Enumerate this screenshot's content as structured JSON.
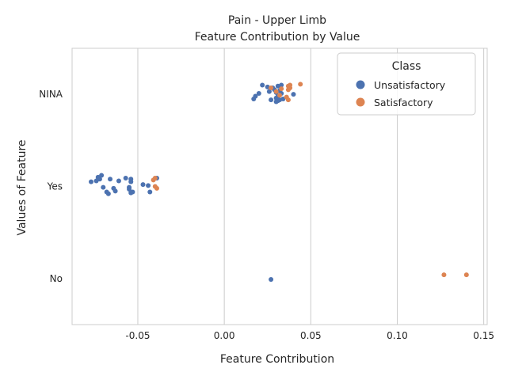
{
  "chart_data": {
    "type": "scatter",
    "title": "Pain - Upper Limb",
    "subtitle": "Feature Contribution by Value",
    "xlabel": "Feature Contribution",
    "ylabel": "Values of Feature",
    "xlim": [
      -0.088,
      0.152
    ],
    "x_ticks": [
      "-0.05",
      "0.00",
      "0.05",
      "0.10",
      "0.15"
    ],
    "x_tick_values": [
      -0.05,
      0.0,
      0.05,
      0.1,
      0.15
    ],
    "categories": [
      "NINA",
      "Yes",
      "No"
    ],
    "grid": "vertical",
    "legend": {
      "title": "Class",
      "position": "top-right"
    },
    "series": [
      {
        "name": "Unsatisfactory",
        "color": "#4c72b0",
        "points": [
          {
            "category": "NINA",
            "x": 0.022,
            "jitter": 0.1
          },
          {
            "category": "NINA",
            "x": 0.025,
            "jitter": 0.08
          },
          {
            "category": "NINA",
            "x": 0.026,
            "jitter": 0.03
          },
          {
            "category": "NINA",
            "x": 0.028,
            "jitter": 0.07
          },
          {
            "category": "NINA",
            "x": 0.029,
            "jitter": 0.05
          },
          {
            "category": "NINA",
            "x": 0.03,
            "jitter": 0.02
          },
          {
            "category": "NINA",
            "x": 0.031,
            "jitter": 0.09
          },
          {
            "category": "NINA",
            "x": 0.032,
            "jitter": 0.04
          },
          {
            "category": "NINA",
            "x": 0.033,
            "jitter": 0.1
          },
          {
            "category": "NINA",
            "x": 0.033,
            "jitter": 0.01
          },
          {
            "category": "NINA",
            "x": 0.031,
            "jitter": -0.02
          },
          {
            "category": "NINA",
            "x": 0.03,
            "jitter": -0.04
          },
          {
            "category": "NINA",
            "x": 0.032,
            "jitter": -0.06
          },
          {
            "category": "NINA",
            "x": 0.034,
            "jitter": -0.05
          },
          {
            "category": "NINA",
            "x": 0.031,
            "jitter": -0.07
          },
          {
            "category": "NINA",
            "x": 0.03,
            "jitter": -0.08
          },
          {
            "category": "NINA",
            "x": 0.027,
            "jitter": -0.06
          },
          {
            "category": "NINA",
            "x": 0.02,
            "jitter": 0.01
          },
          {
            "category": "NINA",
            "x": 0.018,
            "jitter": -0.02
          },
          {
            "category": "NINA",
            "x": 0.017,
            "jitter": -0.05
          },
          {
            "category": "NINA",
            "x": 0.04,
            "jitter": 0.0
          },
          {
            "category": "Yes",
            "x": -0.077,
            "jitter": 0.05
          },
          {
            "category": "Yes",
            "x": -0.074,
            "jitter": 0.06
          },
          {
            "category": "Yes",
            "x": -0.073,
            "jitter": 0.1
          },
          {
            "category": "Yes",
            "x": -0.072,
            "jitter": 0.08
          },
          {
            "category": "Yes",
            "x": -0.071,
            "jitter": 0.12
          },
          {
            "category": "Yes",
            "x": -0.066,
            "jitter": 0.08
          },
          {
            "category": "Yes",
            "x": -0.061,
            "jitter": 0.06
          },
          {
            "category": "Yes",
            "x": -0.057,
            "jitter": 0.09
          },
          {
            "category": "Yes",
            "x": -0.054,
            "jitter": 0.08
          },
          {
            "category": "Yes",
            "x": -0.054,
            "jitter": 0.05
          },
          {
            "category": "Yes",
            "x": -0.07,
            "jitter": -0.01
          },
          {
            "category": "Yes",
            "x": -0.068,
            "jitter": -0.06
          },
          {
            "category": "Yes",
            "x": -0.067,
            "jitter": -0.08
          },
          {
            "category": "Yes",
            "x": -0.064,
            "jitter": -0.02
          },
          {
            "category": "Yes",
            "x": -0.063,
            "jitter": -0.05
          },
          {
            "category": "Yes",
            "x": -0.055,
            "jitter": -0.01
          },
          {
            "category": "Yes",
            "x": -0.055,
            "jitter": -0.03
          },
          {
            "category": "Yes",
            "x": -0.054,
            "jitter": -0.07
          },
          {
            "category": "Yes",
            "x": -0.053,
            "jitter": -0.06
          },
          {
            "category": "Yes",
            "x": -0.047,
            "jitter": 0.02
          },
          {
            "category": "Yes",
            "x": -0.044,
            "jitter": 0.01
          },
          {
            "category": "Yes",
            "x": -0.043,
            "jitter": -0.06
          },
          {
            "category": "Yes",
            "x": -0.039,
            "jitter": 0.09
          },
          {
            "category": "No",
            "x": 0.027,
            "jitter": -0.01
          }
        ]
      },
      {
        "name": "Satisfactory",
        "color": "#dd8452",
        "points": [
          {
            "category": "NINA",
            "x": 0.027,
            "jitter": 0.07
          },
          {
            "category": "NINA",
            "x": 0.03,
            "jitter": 0.03
          },
          {
            "category": "NINA",
            "x": 0.032,
            "jitter": -0.01
          },
          {
            "category": "NINA",
            "x": 0.033,
            "jitter": 0.06
          },
          {
            "category": "NINA",
            "x": 0.036,
            "jitter": -0.03
          },
          {
            "category": "NINA",
            "x": 0.037,
            "jitter": 0.09
          },
          {
            "category": "NINA",
            "x": 0.037,
            "jitter": 0.05
          },
          {
            "category": "NINA",
            "x": 0.038,
            "jitter": 0.1
          },
          {
            "category": "NINA",
            "x": 0.038,
            "jitter": 0.07
          },
          {
            "category": "NINA",
            "x": 0.037,
            "jitter": -0.06
          },
          {
            "category": "NINA",
            "x": 0.044,
            "jitter": 0.11
          },
          {
            "category": "Yes",
            "x": -0.041,
            "jitter": 0.07
          },
          {
            "category": "Yes",
            "x": -0.04,
            "jitter": 0.09
          },
          {
            "category": "Yes",
            "x": -0.04,
            "jitter": 0.0
          },
          {
            "category": "Yes",
            "x": -0.039,
            "jitter": -0.02
          },
          {
            "category": "No",
            "x": 0.127,
            "jitter": 0.04
          },
          {
            "category": "No",
            "x": 0.14,
            "jitter": 0.04
          }
        ]
      }
    ]
  }
}
